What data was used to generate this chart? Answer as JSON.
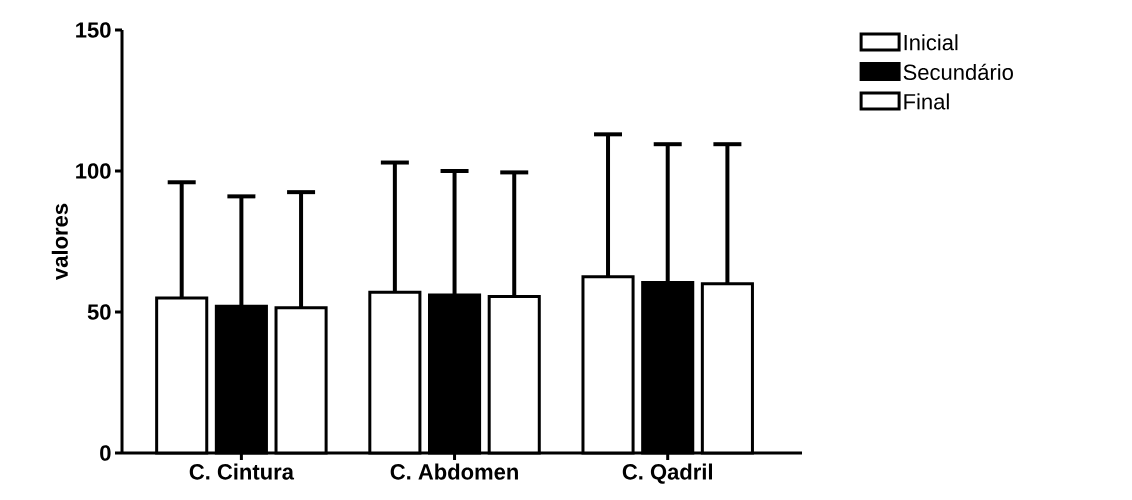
{
  "chart_data": {
    "type": "bar",
    "ylabel": "valores",
    "categories": [
      "C. Cintura",
      "C. Abdomen",
      "C. Qadril"
    ],
    "series": [
      {
        "name": "Inicial",
        "color": "#ffffff",
        "values": [
          55,
          57,
          62.5
        ],
        "errors": [
          41,
          46,
          50.5
        ]
      },
      {
        "name": "Secundário",
        "color": "#000000",
        "values": [
          52,
          56,
          60.5
        ],
        "errors": [
          39,
          44,
          49
        ]
      },
      {
        "name": "Final",
        "color": "#ffffff",
        "values": [
          51.5,
          55.5,
          60
        ],
        "errors": [
          41,
          44,
          49.5
        ]
      }
    ],
    "ylim": [
      0,
      150
    ],
    "yticks": [
      0,
      50,
      100,
      150
    ],
    "legend": "top right"
  }
}
